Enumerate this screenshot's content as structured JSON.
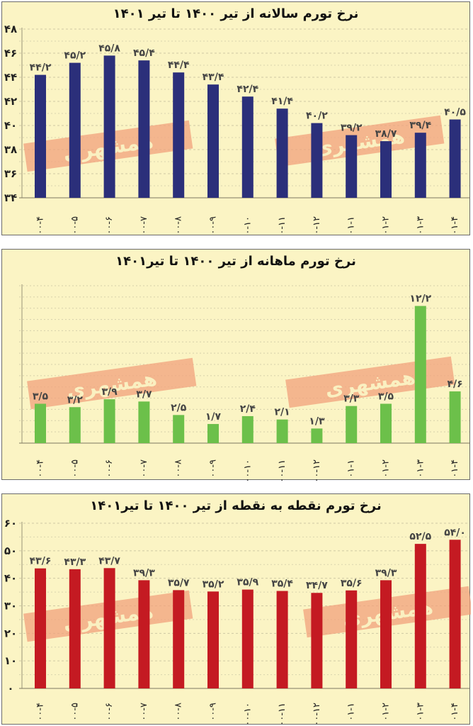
{
  "watermark": "همشهری",
  "colors": {
    "panel_bg": "#fbf4c4",
    "blue": "#2b2f7a",
    "green": "#6cc04a",
    "red": "#c41a22",
    "watermark": "#f2a27c"
  },
  "chart_data": [
    {
      "type": "bar",
      "title": "نرخ تورم سالانه از تیر ۱۴۰۰ تا تیر ۱۴۰۱",
      "categories": [
        "۰۰-۴",
        "۰۰-۵",
        "۰۰-۶",
        "۰۰-۷",
        "۰۰-۸",
        "۰۰-۹",
        "۰۰-۱۰",
        "۰۰-۱۱",
        "۰۰-۱۲",
        "۰۱-۱",
        "۰۱-۲",
        "۰۱-۳",
        "۰۱-۴"
      ],
      "values": [
        44.2,
        45.2,
        45.8,
        45.4,
        44.4,
        43.4,
        42.4,
        41.4,
        40.2,
        39.2,
        38.7,
        39.4,
        40.5
      ],
      "value_labels": [
        "۴۴/۲",
        "۴۵/۲",
        "۴۵/۸",
        "۴۵/۴",
        "۴۴/۴",
        "۴۳/۴",
        "۴۲/۴",
        "۴۱/۴",
        "۴۰/۲",
        "۳۹/۲",
        "۳۸/۷",
        "۳۹/۴",
        "۴۰/۵"
      ],
      "ylim": [
        34,
        48
      ],
      "yticks": [
        34,
        36,
        38,
        40,
        42,
        44,
        46,
        48
      ],
      "ytick_labels": [
        "۳۴",
        "۳۶",
        "۳۸",
        "۴۰",
        "۴۲",
        "۴۴",
        "۴۶",
        "۴۸"
      ],
      "grid": true,
      "color": "#2b2f7a"
    },
    {
      "type": "bar",
      "title": "نرخ تورم ماهانه از تیر ۱۴۰۰ تا تیر۱۴۰۱",
      "categories": [
        "۰۰-۴",
        "۰۰-۵",
        "۰۰-۶",
        "۰۰-۷",
        "۰۰-۸",
        "۰۰-۹",
        "۰۰-۱۰",
        "۰۰-۱۱",
        "۰۰-۱۲",
        "۰۱-۱",
        "۰۱-۲",
        "۰۱-۳",
        "۰۱-۴"
      ],
      "values": [
        3.5,
        3.2,
        3.9,
        3.7,
        2.5,
        1.7,
        2.4,
        2.1,
        1.3,
        3.3,
        3.5,
        12.2,
        4.6
      ],
      "value_labels": [
        "۳/۵",
        "۳/۲",
        "۳/۹",
        "۳/۷",
        "۲/۵",
        "۱/۷",
        "۲/۴",
        "۲/۱",
        "۱/۳",
        "۳/۳",
        "۳/۵",
        "۱۲/۲",
        "۴/۶"
      ],
      "ylim": [
        0,
        14
      ],
      "grid": true,
      "color": "#6cc04a"
    },
    {
      "type": "bar",
      "title": "نرخ تورم نقطه به نقطه از تیر ۱۴۰۰ تا تیر۱۴۰۱",
      "categories": [
        "۰۰-۴",
        "۰۰-۵",
        "۰۰-۶",
        "۰۰-۷",
        "۰۰-۸",
        "۰۰-۹",
        "۰۰-۱۰",
        "۰۰-۱۱",
        "۰۰-۱۲",
        "۰۱-۱",
        "۰۱-۲",
        "۰۱-۳",
        "۰۱-۴"
      ],
      "values": [
        43.6,
        43.3,
        43.7,
        39.3,
        35.7,
        35.2,
        35.9,
        35.4,
        34.7,
        35.6,
        39.3,
        52.5,
        54.0
      ],
      "value_labels": [
        "۴۳/۶",
        "۴۳/۳",
        "۴۳/۷",
        "۳۹/۳",
        "۳۵/۷",
        "۳۵/۲",
        "۳۵/۹",
        "۳۵/۴",
        "۳۴/۷",
        "۳۵/۶",
        "۳۹/۳",
        "۵۲/۵",
        "۵۴/۰"
      ],
      "ylim": [
        0,
        60
      ],
      "yticks": [
        0,
        10,
        20,
        30,
        40,
        50,
        60
      ],
      "ytick_labels": [
        "۰",
        "۱۰",
        "۲۰",
        "۳۰",
        "۴۰",
        "۵۰",
        "۶۰"
      ],
      "grid": true,
      "color": "#c41a22"
    }
  ]
}
